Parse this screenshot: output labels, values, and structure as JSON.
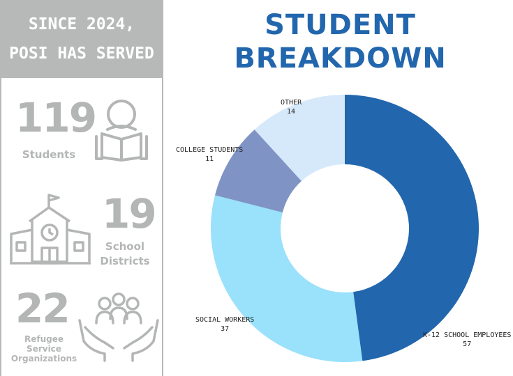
{
  "left_panel": {
    "header_line1": "SINCE 2024,",
    "header_line2": "POSI HAS SERVED",
    "stats": [
      {
        "value": "119",
        "label": "Students",
        "icon": "student-reading-icon"
      },
      {
        "value": "19",
        "label_line1": "School",
        "label_line2": "Districts",
        "icon": "school-building-icon"
      },
      {
        "value": "22",
        "label_line1": "Refugee",
        "label_line2": "Service",
        "label_line3": "Organizations",
        "icon": "helping-hands-people-icon"
      }
    ]
  },
  "title_line1": "STUDENT",
  "title_line2": "BREAKDOWN",
  "chart_data": {
    "type": "pie",
    "donut": true,
    "title": "STUDENT BREAKDOWN",
    "start_angle_deg": 0,
    "slices": [
      {
        "label": "K-12 SCHOOL EMPLOYEES",
        "value": 57,
        "color": "#2266ad"
      },
      {
        "label": "SOCIAL WORKERS",
        "value": 37,
        "color": "#9ae1fb"
      },
      {
        "label": "COLLEGE STUDENTS",
        "value": 11,
        "color": "#7f93c4"
      },
      {
        "label": "OTHER",
        "value": 14,
        "color": "#d6e9fb"
      }
    ]
  },
  "colors": {
    "panel_gray": "#b7b9b9",
    "stat_gray": "#b4b6b6",
    "title_blue": "#2266ad"
  }
}
